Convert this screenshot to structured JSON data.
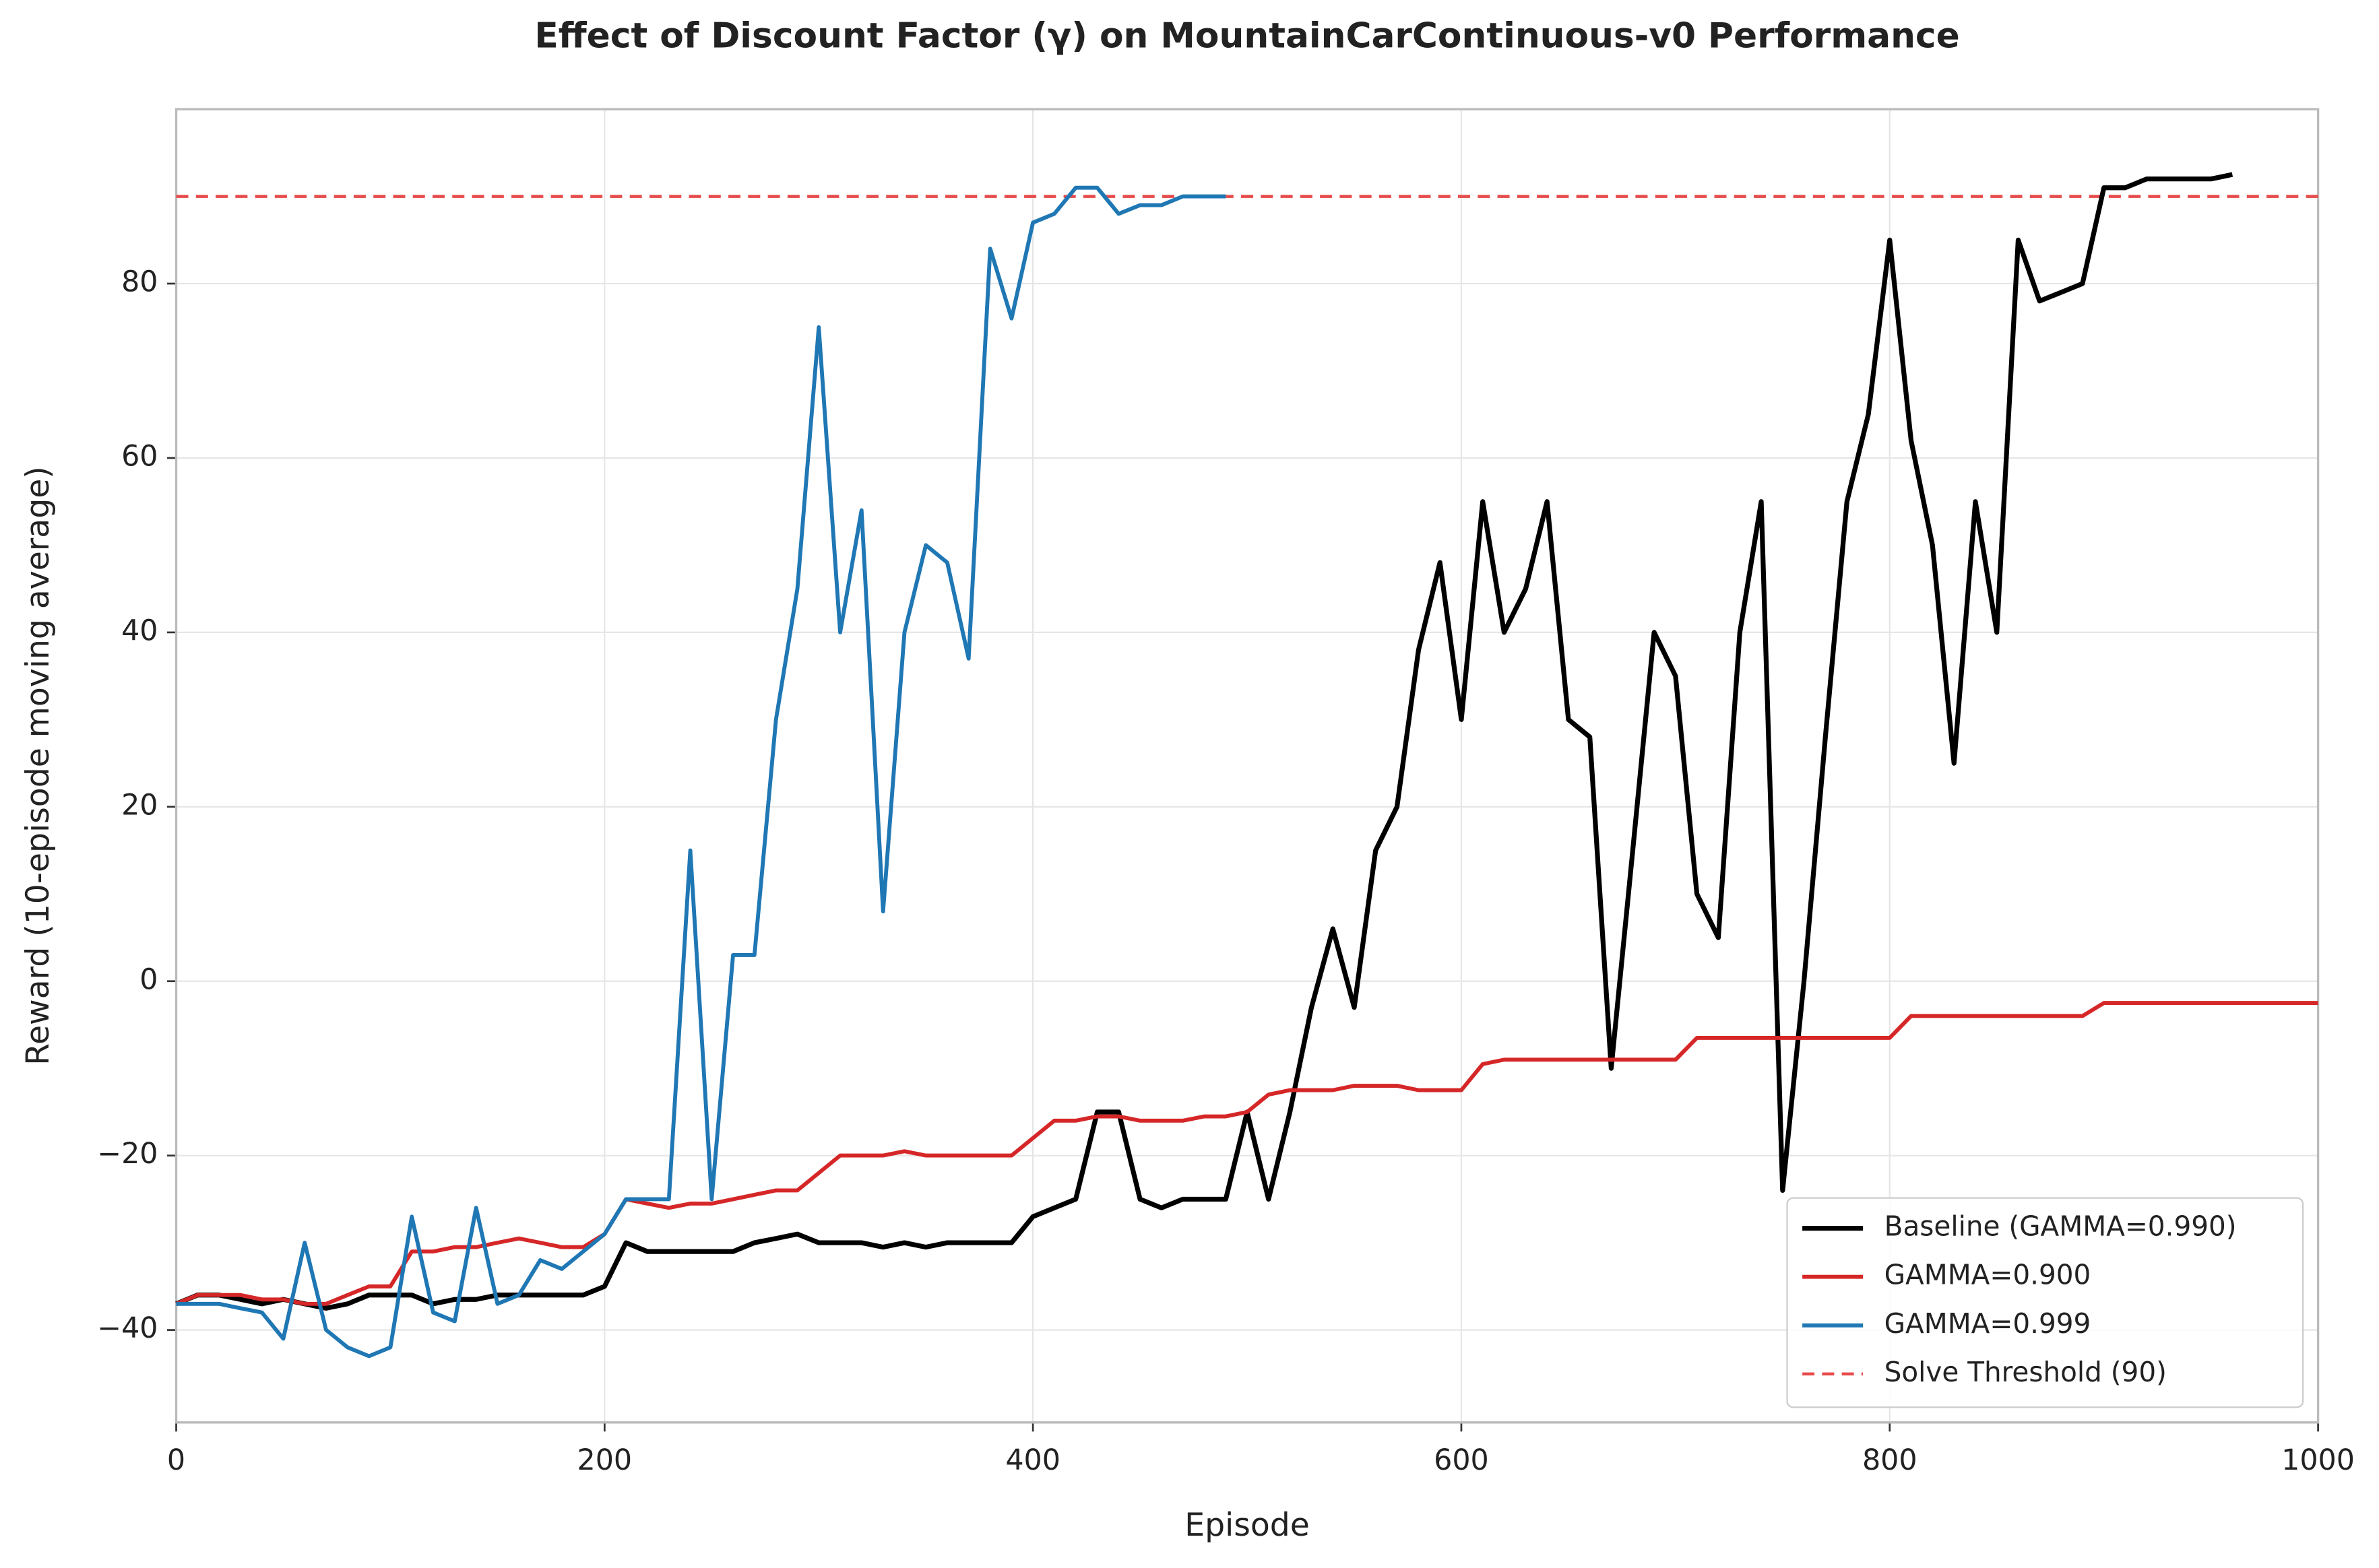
{
  "chart_data": {
    "type": "line",
    "title": "Effect of Discount Factor (γ) on MountainCarContinuous-v0 Performance",
    "xlabel": "Episode",
    "ylabel": "Reward (10-episode moving average)",
    "x": [
      0,
      10,
      20,
      30,
      40,
      50,
      60,
      70,
      80,
      90,
      100,
      110,
      120,
      130,
      140,
      150,
      160,
      170,
      180,
      190,
      200,
      210,
      220,
      230,
      240,
      250,
      260,
      270,
      280,
      290,
      300,
      310,
      320,
      330,
      340,
      350,
      360,
      370,
      380,
      390,
      400,
      410,
      420,
      430,
      440,
      450,
      460,
      470,
      480,
      490,
      500,
      510,
      520,
      530,
      540,
      550,
      560,
      570,
      580,
      590,
      600,
      610,
      620,
      630,
      640,
      650,
      660,
      670,
      680,
      690,
      700,
      710,
      720,
      730,
      740,
      750,
      760,
      770,
      780,
      790,
      800,
      810,
      820,
      830,
      840,
      850,
      860,
      870,
      880,
      890,
      900,
      910,
      920,
      930,
      940,
      950,
      960,
      970,
      980,
      990,
      1000
    ],
    "series": [
      {
        "name": "Baseline (GAMMA=0.990)",
        "color": "#000000",
        "values": [
          -37,
          -36,
          -36,
          -36.5,
          -37,
          -36.5,
          -37,
          -37.5,
          -37,
          -36,
          -36,
          -36,
          -37,
          -36.5,
          -36.5,
          -36,
          -36,
          -36,
          -36,
          -36,
          -35,
          -30,
          -31,
          -31,
          -31,
          -31,
          -31,
          -30,
          -29.5,
          -29,
          -30,
          -30,
          -30,
          -30.5,
          -30,
          -30.5,
          -30,
          -30,
          -30,
          -30,
          -27,
          -26,
          -25,
          -15,
          -15,
          -25,
          -26,
          -25,
          -25,
          -25,
          -15,
          -25,
          -15,
          -3,
          6,
          -3,
          15,
          20,
          38,
          48,
          30,
          55,
          40,
          45,
          55,
          30,
          28,
          -10,
          15,
          40,
          35,
          10,
          5,
          40,
          55,
          -24,
          0,
          28,
          55,
          65,
          85,
          62,
          50,
          25,
          55,
          40,
          85,
          78,
          79,
          80,
          91,
          91,
          92,
          92,
          92,
          92,
          92.5,
          null,
          null,
          null,
          null
        ]
      },
      {
        "name": "GAMMA=0.900",
        "color": "#d62728",
        "values": [
          -37,
          -36,
          -36,
          -36,
          -36.5,
          -36.5,
          -37,
          -37,
          -36,
          -35,
          -35,
          -31,
          -31,
          -30.5,
          -30.5,
          -30,
          -29.5,
          -30,
          -30.5,
          -30.5,
          -29,
          -25,
          -25.5,
          -26,
          -25.5,
          -25.5,
          -25,
          -24.5,
          -24,
          -24,
          -22,
          -20,
          -20,
          -20,
          -19.5,
          -20,
          -20,
          -20,
          -20,
          -20,
          -18,
          -16,
          -16,
          -15.5,
          -15.5,
          -16,
          -16,
          -16,
          -15.5,
          -15.5,
          -15,
          -13,
          -12.5,
          -12.5,
          -12.5,
          -12,
          -12,
          -12,
          -12.5,
          -12.5,
          -12.5,
          -9.5,
          -9,
          -9,
          -9,
          -9,
          -9,
          -9,
          -9,
          -9,
          -9,
          -6.5,
          -6.5,
          -6.5,
          -6.5,
          -6.5,
          -6.5,
          -6.5,
          -6.5,
          -6.5,
          -6.5,
          -4,
          -4,
          -4,
          -4,
          -4,
          -4,
          -4,
          -4,
          -4,
          -2.5,
          -2.5,
          -2.5,
          -2.5,
          -2.5,
          -2.5,
          -2.5,
          -2.5,
          -2.5,
          -2.5,
          -2.5
        ]
      },
      {
        "name": "GAMMA=0.999",
        "color": "#1f77b4",
        "values": [
          -37,
          -37,
          -37,
          -37.5,
          -38,
          -41,
          -30,
          -40,
          -42,
          -43,
          -42,
          -27,
          -38,
          -39,
          -26,
          -37,
          -36,
          -32,
          -33,
          -31,
          -29,
          -25,
          -25,
          -25,
          15,
          -25,
          3,
          3,
          30,
          45,
          75,
          40,
          54,
          8,
          40,
          50,
          48,
          37,
          84,
          76,
          87,
          88,
          91,
          91,
          88,
          89,
          89,
          90,
          90,
          90,
          null,
          null,
          null,
          null,
          null,
          null,
          null,
          null,
          null,
          null,
          null,
          null,
          null,
          null,
          null,
          null,
          null,
          null,
          null,
          null,
          null,
          null,
          null,
          null,
          null,
          null,
          null,
          null,
          null,
          null,
          null,
          null,
          null,
          null,
          null,
          null,
          null,
          null,
          null,
          null,
          null,
          null,
          null,
          null,
          null,
          null,
          null,
          null,
          null,
          null,
          null
        ]
      }
    ],
    "threshold": {
      "value": 90,
      "label": "Solve Threshold (90)",
      "color": "#e84a4a"
    },
    "xlim": [
      0,
      1000
    ],
    "ylim": [
      -50.6,
      100
    ],
    "xticks": [
      0,
      200,
      400,
      600,
      800,
      1000
    ],
    "yticks": [
      {
        "value": -40,
        "label": "−40"
      },
      {
        "value": -20,
        "label": "−20"
      },
      0,
      20,
      40,
      60,
      80
    ],
    "grid": true,
    "legend": "lower right"
  }
}
